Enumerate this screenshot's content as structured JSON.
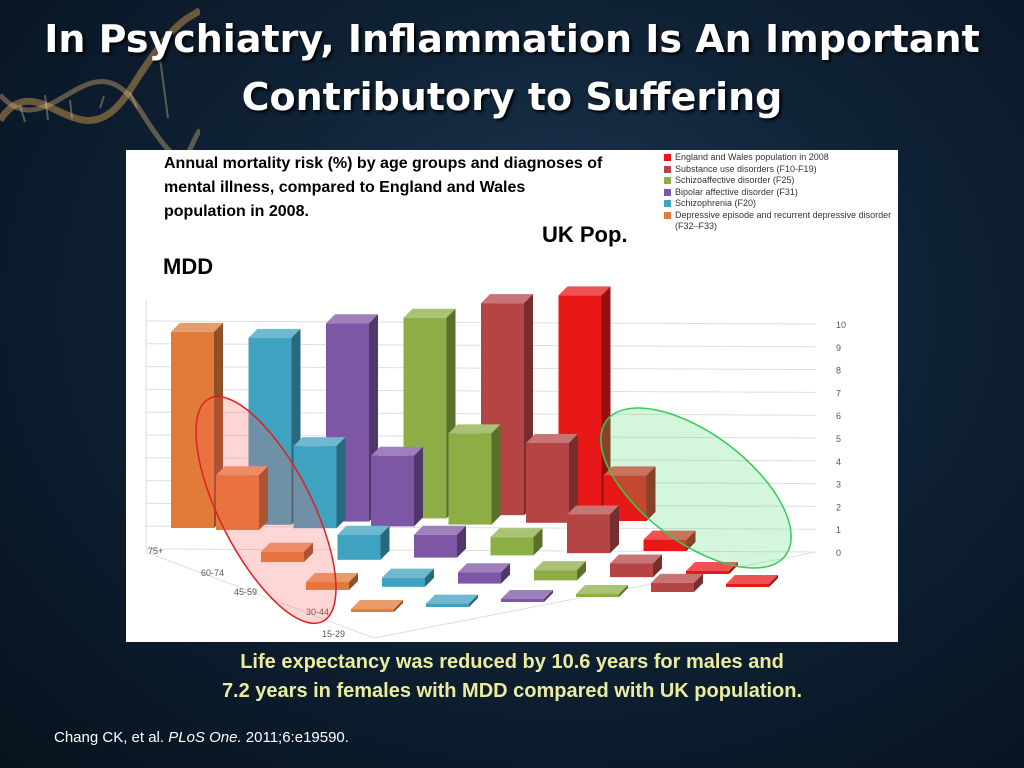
{
  "slide": {
    "title_line1": "In Psychiatry, Inflammation Is An Important",
    "title_line2": "Contributory to Suffering",
    "caption_line1": "Life expectancy was reduced by 10.6 years for males and",
    "caption_line2": "7.2 years in females with MDD compared with UK population.",
    "citation_prefix": "Chang CK, et al. ",
    "citation_journal": "PLoS One.",
    "citation_suffix": " 2011;6:e19590."
  },
  "annotations": {
    "mdd": "MDD",
    "uk_pop": "UK Pop."
  },
  "colors": {
    "highlight_red": "#e02020",
    "highlight_green": "#33cc55"
  },
  "chart_data": {
    "type": "bar",
    "title": "Annual mortality risk (%) by age groups and diagnoses of mental illness, compared to England and Wales population in 2008.",
    "three_d": true,
    "age_groups": [
      "15-29",
      "30-44",
      "45-59",
      "60-74",
      "75+"
    ],
    "z_ticks": [
      "0",
      "1",
      "2",
      "3",
      "4",
      "5",
      "6",
      "7",
      "8",
      "9",
      "10"
    ],
    "zlim": [
      0,
      10
    ],
    "grid": true,
    "legend_position": "top-right",
    "series": [
      {
        "name": "England and Wales population in 2008",
        "color": "#e81818",
        "values": [
          0.05,
          0.1,
          0.5,
          2.0,
          9.5
        ]
      },
      {
        "name": "Substance use disorders (F10-F19)",
        "color": "#b54545",
        "values": [
          0.4,
          0.6,
          1.7,
          3.5,
          9.3
        ]
      },
      {
        "name": "Schizoaffective disorder (F25)",
        "color": "#8dad45",
        "values": [
          0.1,
          0.45,
          0.8,
          4.0,
          8.8
        ]
      },
      {
        "name": "Bipolar affective disorder (F31)",
        "color": "#7d56a6",
        "values": [
          0.12,
          0.5,
          1.0,
          3.1,
          8.7
        ]
      },
      {
        "name": "Schizophrenia (F20)",
        "color": "#3fa2c0",
        "values": [
          0.15,
          0.4,
          1.1,
          3.6,
          8.2
        ]
      },
      {
        "name": "Depressive episode and recurrent depressive disorder (F32–F33)",
        "color": "#e07b39",
        "values": [
          0.1,
          0.35,
          0.45,
          2.4,
          8.6
        ]
      }
    ]
  }
}
